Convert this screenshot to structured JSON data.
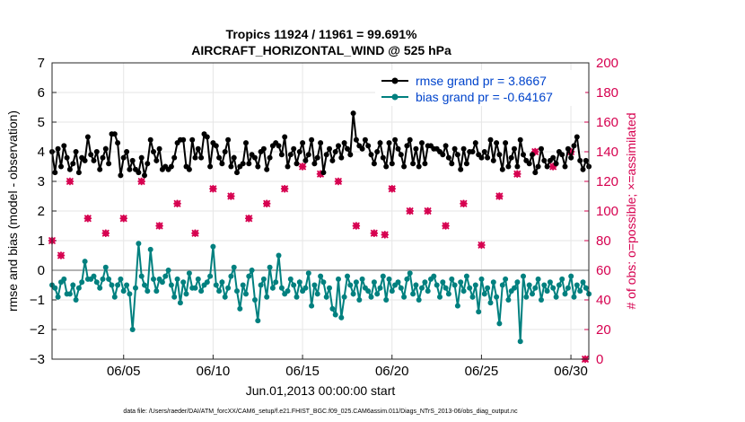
{
  "chart_data": {
    "type": "line",
    "title_line1": "Tropics 11924 / 11961 = 99.691%",
    "title_line2": "AIRCRAFT_HORIZONTAL_WIND @ 525 hPa",
    "xlabel": "Jun.01,2013 00:00:00 start",
    "ylabel_left": "rmse and bias (model - observation)",
    "ylabel_right": "# of obs: o=possible; ×=assimilated",
    "footer": "data file: /Users/raeder/DAI/ATM_forcXX/CAM6_setup/f.e21.FHIST_BGC.f09_025.CAM6assim.011/Diags_NTrS_2013-06/obs_diag_output.nc",
    "xlim": [
      1,
      31
    ],
    "ylim_left": [
      -3,
      7
    ],
    "ylim_right": [
      0,
      200
    ],
    "x_ticks": [
      5,
      10,
      15,
      20,
      25,
      30
    ],
    "x_tick_labels": [
      "06/05",
      "06/10",
      "06/15",
      "06/20",
      "06/25",
      "06/30"
    ],
    "y_ticks_left": [
      -3,
      -2,
      -1,
      0,
      1,
      2,
      3,
      4,
      5,
      6,
      7
    ],
    "y_ticks_right": [
      0,
      20,
      40,
      60,
      80,
      100,
      120,
      140,
      160,
      180,
      200
    ],
    "grid": true,
    "legend_position": "top-right",
    "colors": {
      "rmse": "#000000",
      "bias": "#00807f",
      "obs": "#d6004f",
      "legend_text": "#0044cc",
      "zero_line": "#b3b3b3"
    },
    "series": [
      {
        "name": "rmse grand pr = 3.8667",
        "axis": "left",
        "values": [
          4.0,
          3.3,
          4.1,
          3.5,
          4.2,
          3.8,
          3.4,
          3.6,
          4.0,
          3.3,
          3.8,
          3.7,
          4.5,
          3.9,
          3.7,
          4.0,
          3.4,
          3.8,
          4.1,
          3.6,
          4.6,
          4.6,
          4.3,
          3.2,
          3.8,
          4.0,
          3.4,
          3.7,
          3.4,
          3.3,
          3.8,
          3.2,
          3.6,
          4.4,
          4.0,
          3.7,
          4.1,
          3.4,
          3.5,
          3.4,
          3.5,
          3.8,
          4.3,
          4.4,
          4.4,
          3.5,
          3.4,
          4.4,
          3.8,
          4.1,
          3.8,
          4.6,
          4.5,
          3.5,
          4.3,
          4.2,
          3.8,
          3.6,
          4.0,
          4.4,
          3.5,
          3.8,
          3.3,
          3.5,
          3.6,
          4.3,
          3.6,
          3.9,
          3.8,
          3.5,
          4.0,
          4.1,
          3.4,
          3.8,
          4.2,
          4.3,
          4.2,
          3.9,
          4.5,
          3.5,
          3.9,
          4.1,
          3.6,
          4.0,
          4.3,
          3.7,
          3.9,
          4.4,
          3.6,
          3.8,
          4.3,
          3.3,
          3.9,
          4.1,
          3.7,
          4.0,
          4.2,
          3.8,
          4.3,
          4.1,
          3.9,
          5.3,
          4.4,
          4.2,
          4.1,
          4.4,
          4.2,
          3.9,
          3.6,
          4.0,
          4.3,
          3.8,
          3.5,
          4.3,
          3.6,
          4.4,
          4.1,
          3.9,
          3.5,
          4.2,
          4.4,
          3.6,
          4.1,
          3.5,
          4.3,
          3.6,
          4.2,
          4.2,
          4.1,
          4.1,
          4.0,
          3.9,
          4.2,
          3.8,
          3.6,
          4.1,
          3.9,
          3.4,
          4.1,
          3.6,
          4.0,
          4.0,
          4.3,
          3.9,
          3.8,
          4.0,
          3.8,
          4.4,
          3.7,
          4.3,
          3.9,
          3.4,
          4.3,
          3.5,
          3.8,
          4.1,
          3.5,
          4.4,
          3.9,
          3.7,
          3.6,
          3.9,
          3.3,
          3.5,
          4.1,
          3.7,
          3.5,
          3.7,
          3.8,
          3.6,
          4.0,
          3.9,
          3.5,
          4.1,
          3.8,
          4.2,
          4.5,
          3.7,
          3.4,
          3.7,
          3.5,
          3.3,
          3.8,
          3.4,
          3.6,
          4.0,
          4.2
        ],
        "x_start": 1.0,
        "x_step": 0.1667
      },
      {
        "name": "bias grand pr = -0.64167",
        "axis": "left",
        "values": [
          -0.5,
          -0.6,
          -0.9,
          -0.4,
          -0.3,
          -0.8,
          -0.8,
          -0.5,
          -1.0,
          -0.6,
          -0.4,
          0.3,
          -0.3,
          -0.3,
          -0.2,
          -0.4,
          -0.6,
          -0.3,
          0.1,
          -0.3,
          -0.5,
          -0.9,
          -0.5,
          -0.3,
          -0.7,
          -0.5,
          -0.8,
          -2.0,
          -0.6,
          0.9,
          -0.2,
          -0.5,
          -0.7,
          0.7,
          -0.3,
          -0.7,
          -0.3,
          -0.4,
          -0.2,
          0.0,
          -0.5,
          -0.9,
          -0.3,
          -1.1,
          -0.4,
          -0.8,
          -0.1,
          -0.6,
          -0.6,
          -0.3,
          -0.7,
          -0.5,
          -0.4,
          -0.2,
          0.8,
          -0.5,
          -0.7,
          -0.4,
          -0.9,
          -0.6,
          -0.2,
          0.1,
          -0.7,
          -1.3,
          -0.5,
          -0.8,
          -0.2,
          0.0,
          -1.0,
          -1.7,
          -0.5,
          -0.3,
          -0.9,
          0.1,
          -0.6,
          -0.4,
          0.5,
          -0.6,
          -0.8,
          -0.7,
          -0.3,
          -0.5,
          -0.9,
          -0.4,
          -0.7,
          -0.6,
          -0.1,
          -1.2,
          -0.5,
          -0.8,
          -0.2,
          -0.4,
          -0.9,
          -0.6,
          -1.3,
          -1.5,
          -0.3,
          -1.6,
          -0.9,
          -0.2,
          -0.5,
          -0.8,
          -0.4,
          -1.0,
          -0.3,
          -0.6,
          -0.7,
          -0.9,
          -0.4,
          -0.8,
          -0.6,
          -0.2,
          -1.0,
          -0.3,
          -0.7,
          -0.5,
          -0.4,
          -0.6,
          -0.9,
          -0.3,
          -0.1,
          -0.8,
          -0.5,
          -1.0,
          -0.6,
          -0.4,
          -0.7,
          -0.3,
          -0.2,
          -0.5,
          -0.9,
          -0.4,
          -0.6,
          -0.8,
          -0.3,
          -0.5,
          -1.2,
          -0.4,
          -0.7,
          -0.2,
          -0.6,
          -0.9,
          -0.5,
          -1.4,
          -0.3,
          -0.8,
          -0.6,
          -1.1,
          -0.4,
          -0.9,
          -1.8,
          -0.5,
          -0.3,
          -1.0,
          -0.7,
          -0.6,
          -0.4,
          -2.4,
          -0.2,
          -0.9,
          -0.5,
          -0.8,
          -0.6,
          -0.3,
          -1.0,
          -0.5,
          -0.7,
          -0.4,
          -0.6,
          -0.9,
          -0.5,
          -0.3,
          -0.8,
          -0.6,
          -0.2,
          -0.9,
          -0.5,
          -0.7,
          -0.4,
          -0.6,
          -0.8,
          -0.5,
          -0.9,
          -0.6,
          -0.4,
          -0.7,
          -0.5,
          -1.0,
          -0.9,
          -1.0
        ],
        "x_start": 1.0,
        "x_step": 0.1667
      }
    ],
    "obs_possible": [
      [
        1.0,
        80
      ],
      [
        1.5,
        70
      ],
      [
        2,
        120
      ],
      [
        3,
        95
      ],
      [
        4,
        85
      ],
      [
        5,
        95
      ],
      [
        6,
        120
      ],
      [
        7,
        90
      ],
      [
        8,
        105
      ],
      [
        9,
        85
      ],
      [
        10,
        115
      ],
      [
        11,
        110
      ],
      [
        12,
        95
      ],
      [
        13,
        105
      ],
      [
        14,
        115
      ],
      [
        15,
        130
      ],
      [
        16,
        125
      ],
      [
        17,
        120
      ],
      [
        18,
        90
      ],
      [
        19,
        85
      ],
      [
        19.6,
        84
      ],
      [
        20,
        115
      ],
      [
        21,
        100
      ],
      [
        22,
        100
      ],
      [
        23,
        90
      ],
      [
        24,
        105
      ],
      [
        25,
        77
      ],
      [
        26,
        110
      ],
      [
        27,
        125
      ],
      [
        28,
        140
      ],
      [
        29,
        130
      ],
      [
        30,
        140
      ],
      [
        30.8,
        0
      ]
    ],
    "obs_assimilated": [
      [
        1.0,
        80
      ],
      [
        1.5,
        70
      ],
      [
        2,
        120
      ],
      [
        3,
        95
      ],
      [
        4,
        85
      ],
      [
        5,
        95
      ],
      [
        6,
        120
      ],
      [
        7,
        90
      ],
      [
        8,
        105
      ],
      [
        9,
        85
      ],
      [
        10,
        115
      ],
      [
        11,
        110
      ],
      [
        12,
        95
      ],
      [
        13,
        105
      ],
      [
        14,
        115
      ],
      [
        15,
        130
      ],
      [
        16,
        125
      ],
      [
        17,
        120
      ],
      [
        18,
        90
      ],
      [
        19,
        85
      ],
      [
        19.6,
        84
      ],
      [
        20,
        115
      ],
      [
        21,
        100
      ],
      [
        22,
        100
      ],
      [
        23,
        90
      ],
      [
        24,
        105
      ],
      [
        25,
        77
      ],
      [
        26,
        110
      ],
      [
        27,
        125
      ],
      [
        28,
        140
      ],
      [
        29,
        130
      ],
      [
        30,
        140
      ],
      [
        30.8,
        0
      ]
    ]
  }
}
